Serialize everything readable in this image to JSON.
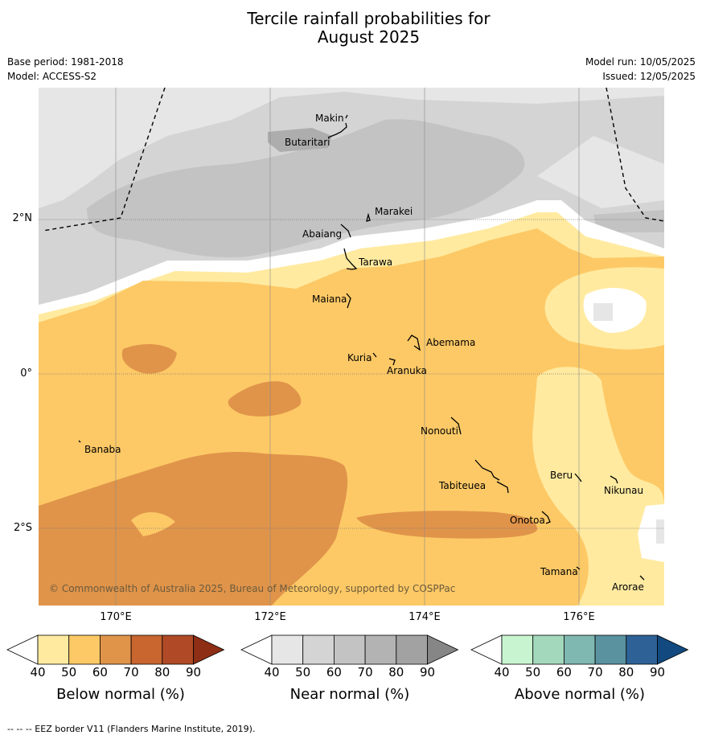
{
  "title_lines": [
    "Tercile rainfall probabilities for",
    "August 2025"
  ],
  "base_period": "Base period: 1981-2018",
  "model": "Model: ACCESS-S2",
  "model_run": "Model run: 10/05/2025",
  "issued": "Issued: 12/05/2025",
  "copyright": "© Commonwealth of Australia 2025, Bureau of Meteorology, supported by COSPPac",
  "footer": "--  --  -- EEZ border V11 (Flanders Marine Institute, 2019).",
  "longitude_labels": [
    "170°E",
    "172°E",
    "174°E",
    "176°E"
  ],
  "latitude_labels": [
    "2°N",
    "0°",
    "2°S"
  ],
  "places": [
    "Makin",
    "Butaritari",
    "Marakei",
    "Abaiang",
    "Tarawa",
    "Maiana",
    "Abemama",
    "Kuria",
    "Aranuka",
    "Nonouti",
    "Banaba",
    "Beru",
    "Tabiteuea",
    "Nikunau",
    "Onotoa",
    "Tamana",
    "Arorae"
  ],
  "colorbars": [
    {
      "label": "Below normal (%)",
      "ticks": [
        "40",
        "50",
        "60",
        "70",
        "80",
        "90"
      ],
      "colors": [
        "#ffeaa0",
        "#fdc966",
        "#e0944a",
        "#c9652f",
        "#b04a26",
        "#8d2e15"
      ]
    },
    {
      "label": "Near normal (%)",
      "ticks": [
        "40",
        "50",
        "60",
        "70",
        "80",
        "90"
      ],
      "colors": [
        "#e6e6e6",
        "#d4d4d4",
        "#c3c3c3",
        "#b3b3b3",
        "#a2a2a2",
        "#868686"
      ]
    },
    {
      "label": "Above normal (%)",
      "ticks": [
        "40",
        "50",
        "60",
        "70",
        "80",
        "90"
      ],
      "colors": [
        "#c8f5d0",
        "#a3d8bd",
        "#7fb8b0",
        "#5a92a0",
        "#2e6296",
        "#124a80"
      ]
    }
  ],
  "colors": {
    "below_50_60": "#fdc966",
    "below_40_50": "#ffeaa0",
    "below_60_70": "#e0944a",
    "near_40_50": "#e6e6e6",
    "near_50_60": "#d4d4d4",
    "near_60_70": "#c3c3c3"
  }
}
